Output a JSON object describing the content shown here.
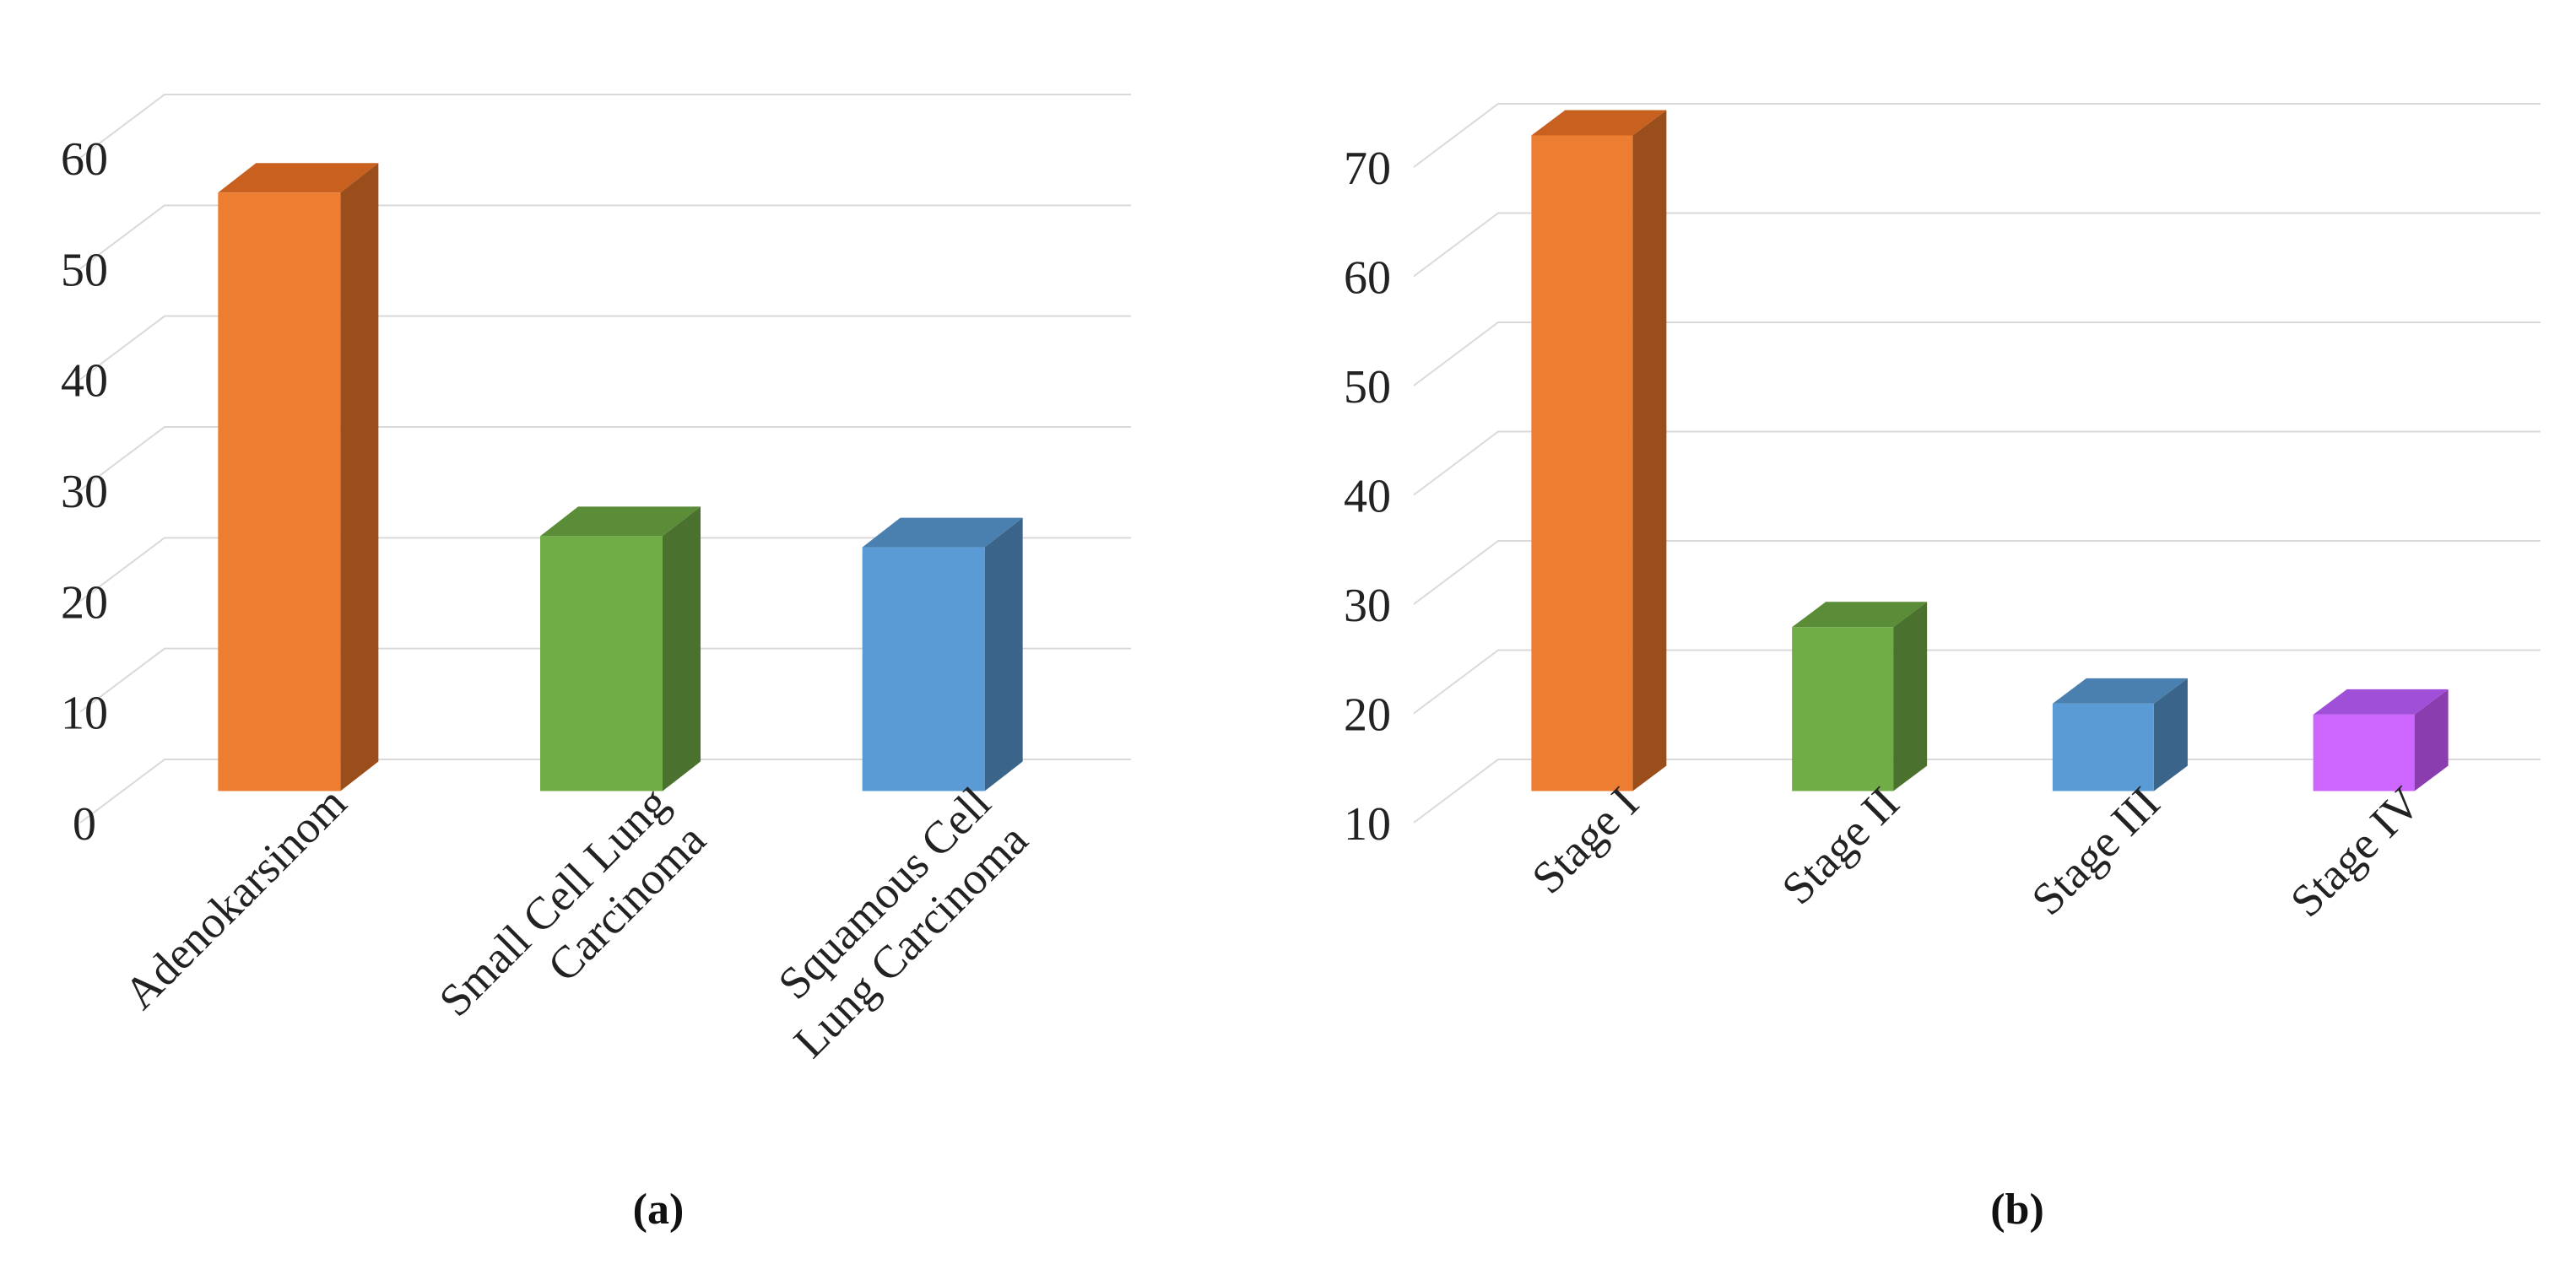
{
  "chart_data": [
    {
      "type": "bar",
      "panel_label": "(a)",
      "categories": [
        "Adenokarsinom",
        "Small Cell Lung Carcinoma",
        "Squamous Cell Lung Carcinoma"
      ],
      "category_lines": [
        [
          "Adenokarsinom"
        ],
        [
          "Small Cell Lung",
          "Carcinoma"
        ],
        [
          "Squamous Cell",
          "Lung Carcinoma"
        ]
      ],
      "values": [
        54,
        23,
        22
      ],
      "ylim": [
        0,
        60
      ],
      "yticks": [
        0,
        10,
        20,
        30,
        40,
        50,
        60
      ],
      "grid": true,
      "colors": [
        {
          "front": "#ED7D31",
          "side": "#9A4E1C",
          "top": "#C8611F"
        },
        {
          "front": "#70AD47",
          "side": "#4A712D",
          "top": "#5B8C38"
        },
        {
          "front": "#5B9BD5",
          "side": "#3A6489",
          "top": "#4A80B0"
        }
      ]
    },
    {
      "type": "bar",
      "panel_label": "(b)",
      "categories": [
        "Stage I",
        "Stage II",
        "Stage III",
        "Stage IV"
      ],
      "category_lines": [
        [
          "Stage I"
        ],
        [
          "Stage II"
        ],
        [
          "Stage III"
        ],
        [
          "Stage IV"
        ]
      ],
      "values": [
        70,
        25,
        18,
        17
      ],
      "ylim": [
        10,
        70
      ],
      "yticks": [
        10,
        20,
        30,
        40,
        50,
        60,
        70
      ],
      "grid": true,
      "colors": [
        {
          "front": "#ED7D31",
          "side": "#9A4E1C",
          "top": "#C8611F"
        },
        {
          "front": "#70AD47",
          "side": "#4A712D",
          "top": "#5B8C38"
        },
        {
          "front": "#5B9BD5",
          "side": "#3A6489",
          "top": "#4A80B0"
        },
        {
          "front": "#CC66FF",
          "side": "#8A3DAF",
          "top": "#A050D8"
        }
      ]
    }
  ]
}
